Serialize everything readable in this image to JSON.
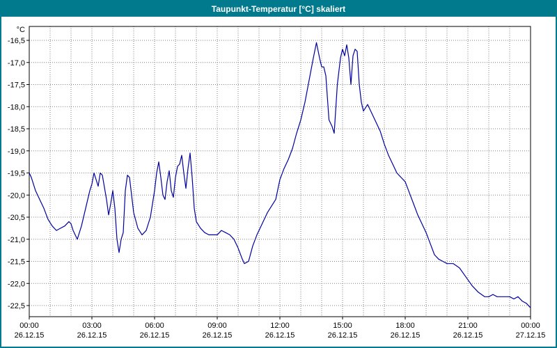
{
  "window": {
    "title": "Taupunkt-Temperatur [°C] skaliert"
  },
  "colors": {
    "title_bar_bg": "#007a8c",
    "title_text": "#ffffff",
    "frame": "#007a8c",
    "line": "#0000a0",
    "grid": "#808080",
    "plot_border": "#000000",
    "plot_bg": "#ffffff"
  },
  "chart_data": {
    "type": "line",
    "title": "Taupunkt-Temperatur [°C] skaliert",
    "y_unit_label": "°C",
    "xlabel": "",
    "ylabel": "Taupunkt-Temperatur [°C]",
    "xlim_hours": [
      0,
      24
    ],
    "ylim": [
      -22.75,
      -16.2
    ],
    "grid": "dotted; vertical each hour, horizontal each 0.5 °C",
    "legend_position": "none",
    "y_ticks": [
      {
        "v": -16.5,
        "label": "-16,5"
      },
      {
        "v": -17.0,
        "label": "-17,0"
      },
      {
        "v": -17.5,
        "label": "-17,5"
      },
      {
        "v": -18.0,
        "label": "-18,0"
      },
      {
        "v": -18.5,
        "label": "-18,5"
      },
      {
        "v": -19.0,
        "label": "-19,0"
      },
      {
        "v": -19.5,
        "label": "-19,5"
      },
      {
        "v": -20.0,
        "label": "-20,0"
      },
      {
        "v": -20.5,
        "label": "-20,5"
      },
      {
        "v": -21.0,
        "label": "-21,0"
      },
      {
        "v": -21.5,
        "label": "-21,5"
      },
      {
        "v": -22.0,
        "label": "-22,0"
      },
      {
        "v": -22.5,
        "label": "-22,5"
      }
    ],
    "x_ticks": [
      {
        "h": 0,
        "time": "00:00",
        "date": "26.12.15"
      },
      {
        "h": 3,
        "time": "03:00",
        "date": "26.12.15"
      },
      {
        "h": 6,
        "time": "06:00",
        "date": "26.12.15"
      },
      {
        "h": 9,
        "time": "09:00",
        "date": "26.12.15"
      },
      {
        "h": 12,
        "time": "12:00",
        "date": "26.12.15"
      },
      {
        "h": 15,
        "time": "15:00",
        "date": "26.12.15"
      },
      {
        "h": 18,
        "time": "18:00",
        "date": "26.12.15"
      },
      {
        "h": 21,
        "time": "21:00",
        "date": "26.12.15"
      },
      {
        "h": 24,
        "time": "00:00",
        "date": "27.12.15"
      }
    ],
    "series": [
      {
        "name": "Taupunkt-Temperatur",
        "color": "#0000a0",
        "points": [
          [
            0.0,
            -19.5
          ],
          [
            0.1,
            -19.6
          ],
          [
            0.3,
            -19.9
          ],
          [
            0.5,
            -20.1
          ],
          [
            0.7,
            -20.3
          ],
          [
            0.9,
            -20.55
          ],
          [
            1.1,
            -20.7
          ],
          [
            1.3,
            -20.8
          ],
          [
            1.5,
            -20.75
          ],
          [
            1.7,
            -20.7
          ],
          [
            1.9,
            -20.6
          ],
          [
            2.0,
            -20.65
          ],
          [
            2.1,
            -20.8
          ],
          [
            2.3,
            -21.0
          ],
          [
            2.5,
            -20.7
          ],
          [
            2.7,
            -20.3
          ],
          [
            2.9,
            -19.9
          ],
          [
            3.0,
            -19.75
          ],
          [
            3.1,
            -19.5
          ],
          [
            3.2,
            -19.65
          ],
          [
            3.3,
            -19.8
          ],
          [
            3.4,
            -19.5
          ],
          [
            3.5,
            -19.55
          ],
          [
            3.7,
            -20.1
          ],
          [
            3.8,
            -20.45
          ],
          [
            3.9,
            -20.2
          ],
          [
            4.0,
            -19.9
          ],
          [
            4.1,
            -20.3
          ],
          [
            4.2,
            -21.0
          ],
          [
            4.3,
            -21.3
          ],
          [
            4.4,
            -21.0
          ],
          [
            4.5,
            -20.85
          ],
          [
            4.6,
            -19.9
          ],
          [
            4.7,
            -19.55
          ],
          [
            4.8,
            -19.6
          ],
          [
            4.9,
            -20.0
          ],
          [
            5.0,
            -20.4
          ],
          [
            5.2,
            -20.75
          ],
          [
            5.4,
            -20.9
          ],
          [
            5.6,
            -20.8
          ],
          [
            5.8,
            -20.5
          ],
          [
            6.0,
            -19.9
          ],
          [
            6.1,
            -19.5
          ],
          [
            6.2,
            -19.25
          ],
          [
            6.3,
            -19.6
          ],
          [
            6.4,
            -20.0
          ],
          [
            6.5,
            -20.1
          ],
          [
            6.6,
            -19.7
          ],
          [
            6.7,
            -19.45
          ],
          [
            6.8,
            -19.9
          ],
          [
            6.9,
            -20.05
          ],
          [
            7.0,
            -19.6
          ],
          [
            7.1,
            -19.35
          ],
          [
            7.2,
            -19.3
          ],
          [
            7.3,
            -19.1
          ],
          [
            7.4,
            -19.5
          ],
          [
            7.5,
            -19.85
          ],
          [
            7.6,
            -19.4
          ],
          [
            7.7,
            -19.05
          ],
          [
            7.8,
            -19.6
          ],
          [
            7.9,
            -20.3
          ],
          [
            8.0,
            -20.6
          ],
          [
            8.2,
            -20.75
          ],
          [
            8.4,
            -20.85
          ],
          [
            8.6,
            -20.9
          ],
          [
            8.8,
            -20.9
          ],
          [
            9.0,
            -20.9
          ],
          [
            9.2,
            -20.8
          ],
          [
            9.4,
            -20.85
          ],
          [
            9.6,
            -20.9
          ],
          [
            9.8,
            -21.0
          ],
          [
            10.0,
            -21.2
          ],
          [
            10.2,
            -21.45
          ],
          [
            10.3,
            -21.55
          ],
          [
            10.5,
            -21.5
          ],
          [
            10.7,
            -21.15
          ],
          [
            10.9,
            -20.9
          ],
          [
            11.0,
            -20.8
          ],
          [
            11.2,
            -20.6
          ],
          [
            11.4,
            -20.4
          ],
          [
            11.6,
            -20.25
          ],
          [
            11.8,
            -20.1
          ],
          [
            12.0,
            -19.65
          ],
          [
            12.2,
            -19.4
          ],
          [
            12.4,
            -19.2
          ],
          [
            12.6,
            -18.95
          ],
          [
            12.8,
            -18.6
          ],
          [
            13.0,
            -18.3
          ],
          [
            13.2,
            -17.9
          ],
          [
            13.4,
            -17.4
          ],
          [
            13.6,
            -16.9
          ],
          [
            13.75,
            -16.55
          ],
          [
            13.9,
            -16.9
          ],
          [
            14.0,
            -17.1
          ],
          [
            14.1,
            -17.1
          ],
          [
            14.2,
            -17.3
          ],
          [
            14.35,
            -18.3
          ],
          [
            14.5,
            -18.45
          ],
          [
            14.6,
            -18.6
          ],
          [
            14.75,
            -17.5
          ],
          [
            14.9,
            -16.9
          ],
          [
            15.0,
            -16.7
          ],
          [
            15.1,
            -16.85
          ],
          [
            15.2,
            -16.6
          ],
          [
            15.3,
            -16.9
          ],
          [
            15.4,
            -17.5
          ],
          [
            15.5,
            -16.85
          ],
          [
            15.6,
            -16.7
          ],
          [
            15.7,
            -16.75
          ],
          [
            15.8,
            -17.5
          ],
          [
            15.9,
            -17.9
          ],
          [
            16.0,
            -18.1
          ],
          [
            16.2,
            -17.95
          ],
          [
            16.4,
            -18.15
          ],
          [
            16.6,
            -18.35
          ],
          [
            16.8,
            -18.55
          ],
          [
            17.0,
            -18.85
          ],
          [
            17.2,
            -19.1
          ],
          [
            17.4,
            -19.3
          ],
          [
            17.6,
            -19.5
          ],
          [
            17.8,
            -19.6
          ],
          [
            18.0,
            -19.7
          ],
          [
            18.2,
            -19.95
          ],
          [
            18.4,
            -20.2
          ],
          [
            18.6,
            -20.45
          ],
          [
            18.8,
            -20.65
          ],
          [
            19.0,
            -20.85
          ],
          [
            19.2,
            -21.1
          ],
          [
            19.4,
            -21.35
          ],
          [
            19.6,
            -21.45
          ],
          [
            19.8,
            -21.5
          ],
          [
            20.0,
            -21.55
          ],
          [
            20.3,
            -21.55
          ],
          [
            20.6,
            -21.65
          ],
          [
            20.9,
            -21.85
          ],
          [
            21.2,
            -22.05
          ],
          [
            21.5,
            -22.2
          ],
          [
            21.8,
            -22.3
          ],
          [
            22.0,
            -22.3
          ],
          [
            22.2,
            -22.25
          ],
          [
            22.4,
            -22.3
          ],
          [
            22.6,
            -22.3
          ],
          [
            22.8,
            -22.3
          ],
          [
            23.0,
            -22.3
          ],
          [
            23.2,
            -22.35
          ],
          [
            23.4,
            -22.3
          ],
          [
            23.6,
            -22.4
          ],
          [
            23.8,
            -22.45
          ],
          [
            24.0,
            -22.55
          ]
        ]
      }
    ]
  }
}
